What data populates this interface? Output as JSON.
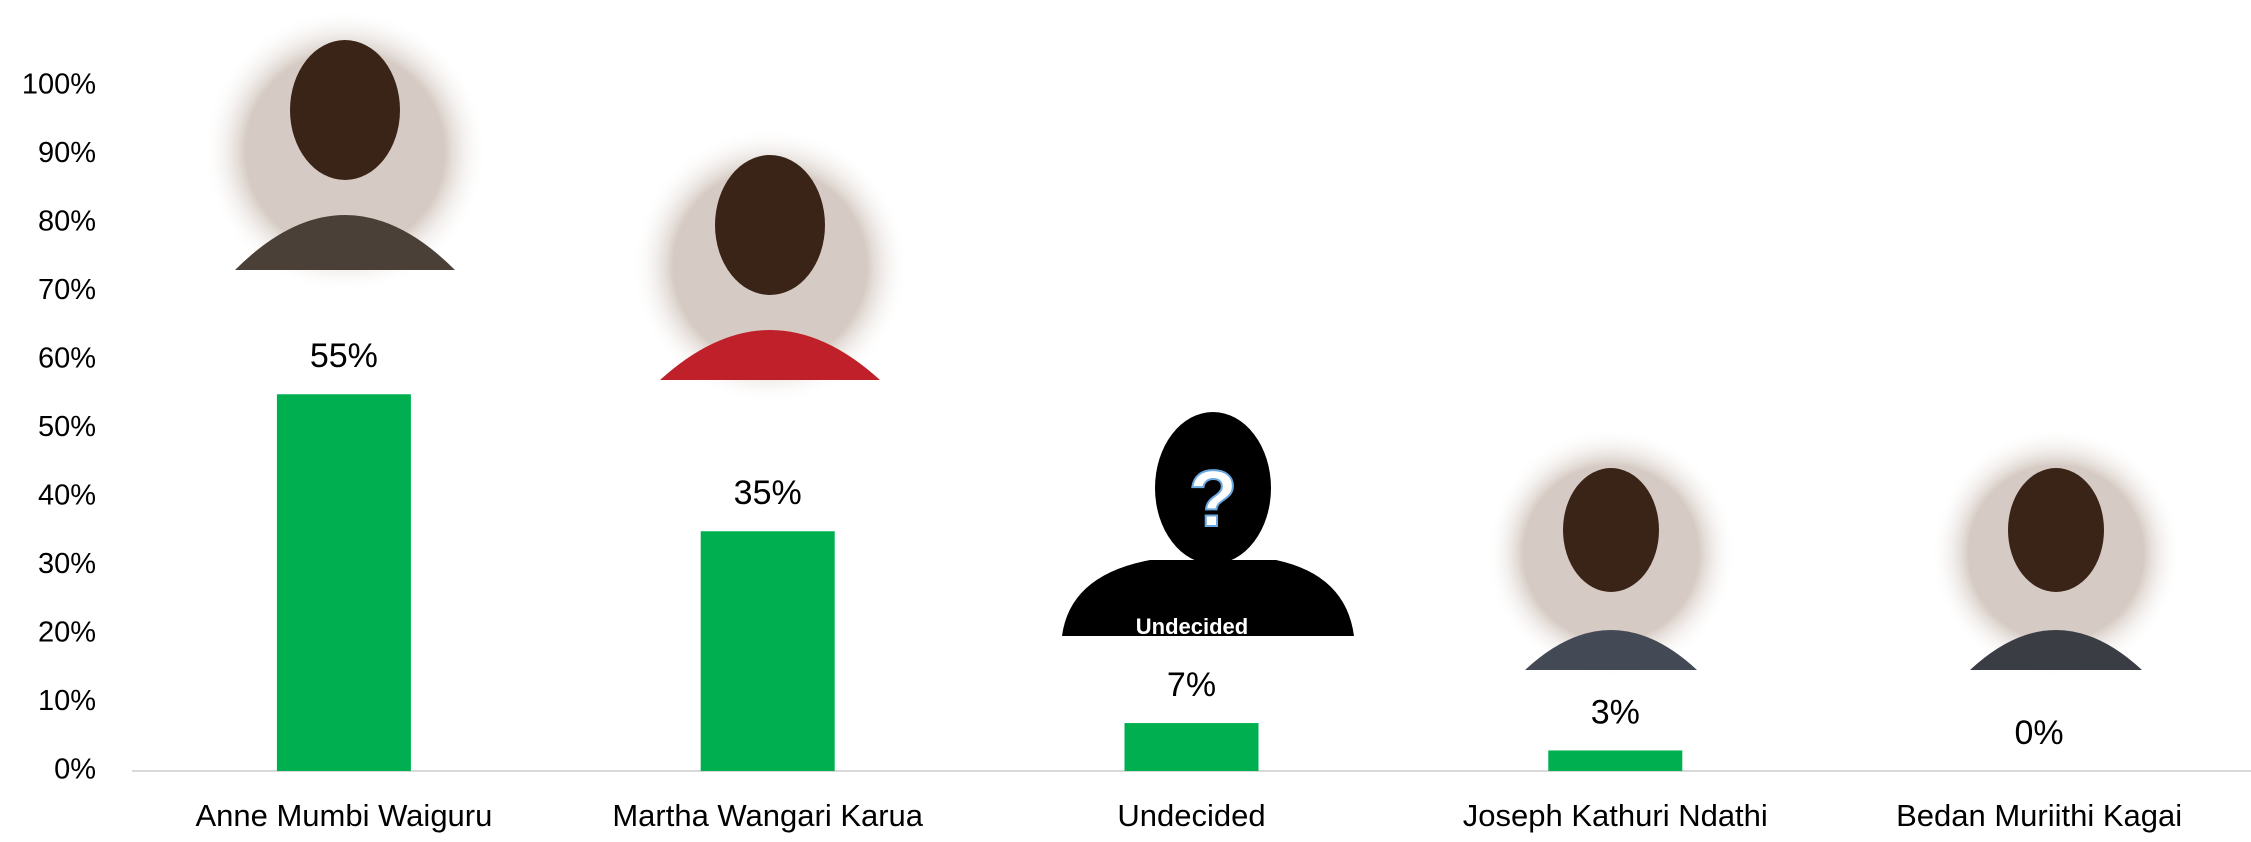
{
  "chart_data": {
    "type": "bar",
    "categories": [
      "Anne Mumbi Waiguru",
      "Martha Wangari Karua",
      "Undecided",
      "Joseph Kathuri  Ndathi",
      "Bedan Muriithi Kagai"
    ],
    "values": [
      55,
      35,
      7,
      3,
      0
    ],
    "value_labels": [
      "55%",
      "35%",
      "7%",
      "3%",
      "0%"
    ],
    "color": "#00b050",
    "ylim": [
      0,
      100
    ],
    "yticks": [
      {
        "value": 0,
        "label": "0%"
      },
      {
        "value": 10,
        "label": "10%"
      },
      {
        "value": 20,
        "label": "20%"
      },
      {
        "value": 30,
        "label": "30%"
      },
      {
        "value": 40,
        "label": "40%"
      },
      {
        "value": 50,
        "label": "50%"
      },
      {
        "value": 60,
        "label": "60%"
      },
      {
        "value": 70,
        "label": "70%"
      },
      {
        "value": 80,
        "label": "80%"
      },
      {
        "value": 90,
        "label": "90%"
      },
      {
        "value": 100,
        "label": "100%"
      }
    ],
    "grid": false,
    "silhouette": {
      "symbol": "?",
      "caption": "Undecided"
    }
  }
}
